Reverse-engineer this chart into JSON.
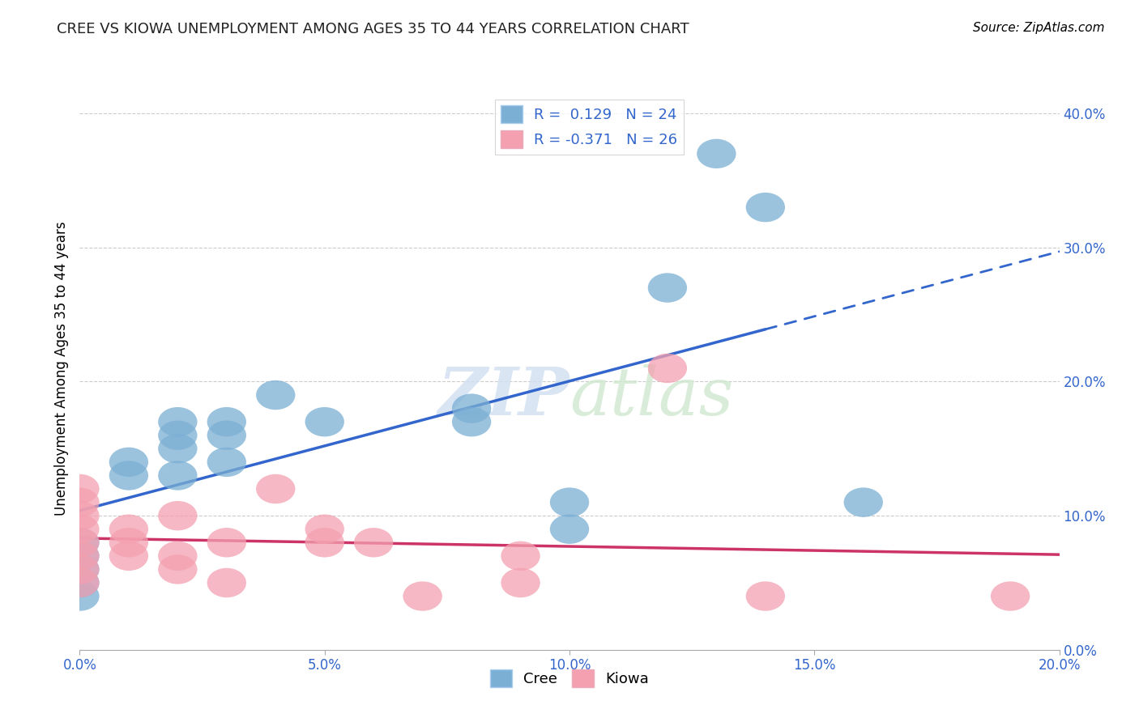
{
  "title": "CREE VS KIOWA UNEMPLOYMENT AMONG AGES 35 TO 44 YEARS CORRELATION CHART",
  "source": "Source: ZipAtlas.com",
  "ylabel": "Unemployment Among Ages 35 to 44 years",
  "xlim": [
    0.0,
    0.2
  ],
  "ylim": [
    0.0,
    0.42
  ],
  "xticks": [
    0.0,
    0.05,
    0.1,
    0.15,
    0.2
  ],
  "yticks": [
    0.0,
    0.1,
    0.2,
    0.3,
    0.4
  ],
  "grid_color": "#cccccc",
  "cree_color": "#7bafd4",
  "kiowa_color": "#f4a0b0",
  "cree_line_color": "#3366cc",
  "kiowa_line_color": "#cc3366",
  "cree_R": 0.129,
  "cree_N": 24,
  "kiowa_R": -0.371,
  "kiowa_N": 26,
  "cree_x": [
    0.0,
    0.0,
    0.0,
    0.0,
    0.0,
    0.01,
    0.01,
    0.02,
    0.02,
    0.02,
    0.02,
    0.03,
    0.03,
    0.03,
    0.04,
    0.05,
    0.08,
    0.08,
    0.1,
    0.1,
    0.12,
    0.13,
    0.14,
    0.16
  ],
  "cree_y": [
    0.04,
    0.05,
    0.06,
    0.07,
    0.08,
    0.13,
    0.14,
    0.13,
    0.15,
    0.16,
    0.17,
    0.14,
    0.16,
    0.17,
    0.19,
    0.17,
    0.17,
    0.18,
    0.11,
    0.09,
    0.27,
    0.37,
    0.33,
    0.11
  ],
  "kiowa_x": [
    0.0,
    0.0,
    0.0,
    0.0,
    0.0,
    0.0,
    0.0,
    0.0,
    0.01,
    0.01,
    0.01,
    0.02,
    0.02,
    0.02,
    0.03,
    0.03,
    0.04,
    0.05,
    0.05,
    0.06,
    0.07,
    0.09,
    0.09,
    0.12,
    0.14,
    0.19
  ],
  "kiowa_y": [
    0.05,
    0.06,
    0.07,
    0.08,
    0.09,
    0.1,
    0.11,
    0.12,
    0.07,
    0.08,
    0.09,
    0.06,
    0.07,
    0.1,
    0.05,
    0.08,
    0.12,
    0.08,
    0.09,
    0.08,
    0.04,
    0.07,
    0.05,
    0.21,
    0.04,
    0.04
  ],
  "cree_line_solid_end": 0.14,
  "bg_color": "#ffffff",
  "tick_color": "#3366cc",
  "title_color": "#222222",
  "title_fontsize": 13,
  "tick_fontsize": 12,
  "legend_fontsize": 13,
  "ylabel_fontsize": 12
}
